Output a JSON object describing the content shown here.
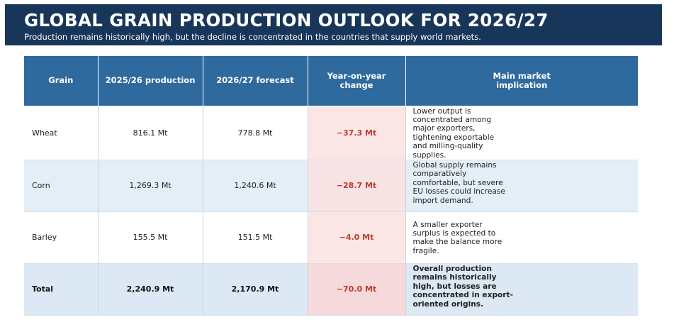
{
  "header": {
    "title": "GLOBAL GRAIN PRODUCTION OUTLOOK FOR 2026/27",
    "subtitle": "Production remains historically high, but the decline is concentrated in the countries that supply world markets."
  },
  "table": {
    "columns": [
      "Grain",
      "2025/26 production",
      "2026/27 forecast",
      "Year-on-year change",
      "Main market implication"
    ],
    "rows": [
      {
        "grain": "Wheat",
        "production_2025_26": "816.1 Mt",
        "forecast_2026_27": "778.8 Mt",
        "change": "−37.3 Mt",
        "implication": "Lower output is concentrated among major exporters, tightening exportable and milling-quality supplies."
      },
      {
        "grain": "Corn",
        "production_2025_26": "1,269.3 Mt",
        "forecast_2026_27": "1,240.6 Mt",
        "change": "−28.7 Mt",
        "implication": "Global supply remains comparatively comfortable, but severe EU losses could increase import demand."
      },
      {
        "grain": "Barley",
        "production_2025_26": "155.5 Mt",
        "forecast_2026_27": "151.5 Mt",
        "change": "−4.0 Mt",
        "implication": "A smaller exporter surplus is expected to make the balance more fragile."
      }
    ],
    "total": {
      "grain": "Total",
      "production_2025_26": "2,240.9 Mt",
      "forecast_2026_27": "2,170.9 Mt",
      "change": "−70.0 Mt",
      "implication": "Overall production remains historically high, but losses are concentrated in export-oriented origins."
    }
  },
  "colors": {
    "banner": "#18365a",
    "header_row": "#2f6a9f",
    "negative_change": "#c0392b",
    "change_highlight": "#fbe6e6",
    "alt_row": "#e4eef7"
  }
}
